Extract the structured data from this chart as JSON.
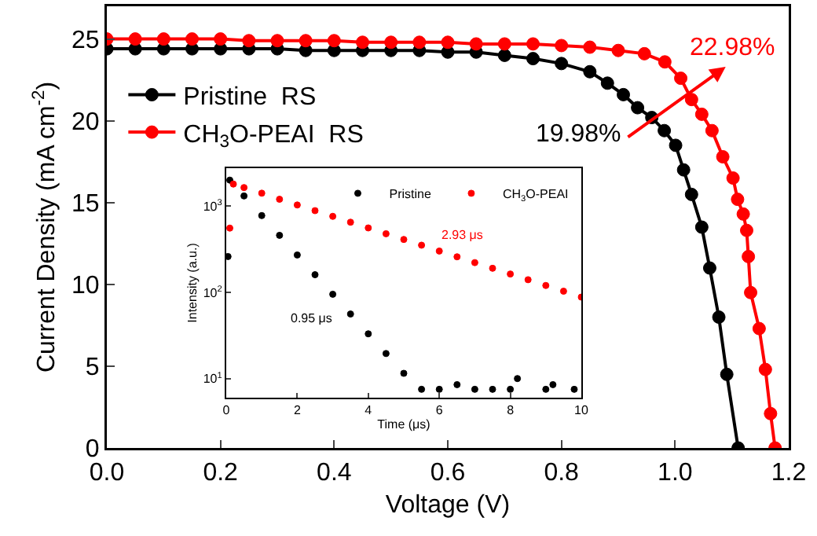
{
  "chart_data": [
    {
      "type": "line",
      "xlabel": "Voltage (V)",
      "ylabel": "Current Density (mA cm$^{-2}$)",
      "xlim": [
        0,
        1.2
      ],
      "xticks": [
        {
          "value": 0,
          "label": "0.0"
        },
        0.2,
        0.4,
        0.6,
        0.8,
        {
          "value": 1,
          "label": "1.0"
        },
        1.2
      ],
      "ylim": [
        0,
        27
      ],
      "yticks": [
        0,
        5,
        10,
        15,
        20,
        25
      ],
      "series": [
        {
          "name": "Pristine  RS",
          "color": "#000000",
          "x": [
            0,
            0.05,
            0.1,
            0.15,
            0.2,
            0.25,
            0.3,
            0.35,
            0.4,
            0.45,
            0.5,
            0.55,
            0.6,
            0.65,
            0.7,
            0.75,
            0.8,
            0.85,
            0.881,
            0.909,
            0.934,
            0.959,
            0.981,
            1.001,
            1.015,
            1.029,
            1.047,
            1.061,
            1.077,
            1.091,
            1.111
          ],
          "values": [
            24.4,
            24.4,
            24.4,
            24.4,
            24.4,
            24.4,
            24.4,
            24.3,
            24.3,
            24.3,
            24.3,
            24.3,
            24.2,
            24.2,
            24.0,
            23.8,
            23.5,
            23.0,
            22.3,
            21.6,
            20.8,
            20.2,
            19.4,
            18.5,
            17.0,
            15.5,
            13.5,
            11.0,
            8.0,
            4.5,
            0
          ]
        },
        {
          "name": "CH$_{3}$O-PEAI  RS",
          "color": "#ff0000",
          "x": [
            0,
            0.05,
            0.1,
            0.15,
            0.2,
            0.25,
            0.3,
            0.35,
            0.4,
            0.45,
            0.5,
            0.55,
            0.6,
            0.65,
            0.7,
            0.75,
            0.8,
            0.85,
            0.9,
            0.946,
            0.982,
            1.01,
            1.029,
            1.047,
            1.065,
            1.084,
            1.102,
            1.11,
            1.12,
            1.126,
            1.129,
            1.133,
            1.148,
            1.159,
            1.168,
            1.176
          ],
          "values": [
            25.0,
            25.0,
            25.0,
            25.0,
            25.0,
            24.9,
            24.9,
            24.9,
            24.9,
            24.8,
            24.8,
            24.8,
            24.8,
            24.7,
            24.7,
            24.7,
            24.6,
            24.5,
            24.3,
            24.1,
            23.6,
            22.6,
            21.3,
            20.4,
            19.4,
            17.8,
            16.5,
            15.2,
            14.3,
            13.3,
            11.7,
            9.5,
            7.3,
            4.8,
            2.1,
            0
          ]
        }
      ],
      "annotations": [
        "19.98%",
        "22.98%"
      ],
      "legend": "top left",
      "marker": "circle",
      "line_style": "solid",
      "grid": false
    },
    {
      "type": "scatter",
      "xlabel": "Time (μs)",
      "ylabel": "Intensity (a.u.)",
      "log": "y",
      "xlim": [
        0,
        10
      ],
      "xticks": [
        0,
        2,
        4,
        6,
        8,
        10
      ],
      "ylim": [
        6,
        2750
      ],
      "yticks": [
        {
          "value": 10,
          "label": "10$^{1}$"
        },
        {
          "value": 100,
          "label": "10$^{2}$"
        },
        {
          "value": 1000,
          "label": "10$^{3}$"
        }
      ],
      "series": [
        {
          "name": "Pristine",
          "color": "#000000",
          "x": [
            0.05,
            0.1,
            0.5,
            1.0,
            1.5,
            2.0,
            2.5,
            3.0,
            3.5,
            4.0,
            4.5,
            5.0,
            5.5,
            6.0,
            6.5,
            7.0,
            7.5,
            8.0,
            8.2,
            9.0,
            9.2,
            9.8
          ],
          "values": [
            260,
            2000,
            1310,
            776,
            458,
            271,
            160,
            95,
            56,
            33,
            19.5,
            11.5,
            7.5,
            7.5,
            8.5,
            7.5,
            7.5,
            7.5,
            10,
            7.5,
            8.5,
            7.5
          ]
        },
        {
          "name": "CH$_{3}$O-PEAI",
          "color": "#ff0000",
          "x": [
            0.1,
            0.2,
            0.5,
            1.0,
            1.5,
            2.0,
            2.5,
            3.0,
            3.5,
            4.0,
            4.5,
            5.0,
            5.5,
            6.0,
            6.5,
            7.0,
            7.5,
            8.0,
            8.5,
            9.0,
            9.5,
            10.0
          ],
          "values": [
            555,
            1800,
            1640,
            1410,
            1200,
            1030,
            885,
            760,
            650,
            558,
            478,
            410,
            352,
            301,
            258,
            221,
            190,
            163,
            140,
            120,
            103,
            88
          ]
        }
      ],
      "annotations": [
        "0.95 μs",
        "2.93 μs"
      ],
      "legend": "top right",
      "marker": "circle",
      "grid": false
    }
  ]
}
